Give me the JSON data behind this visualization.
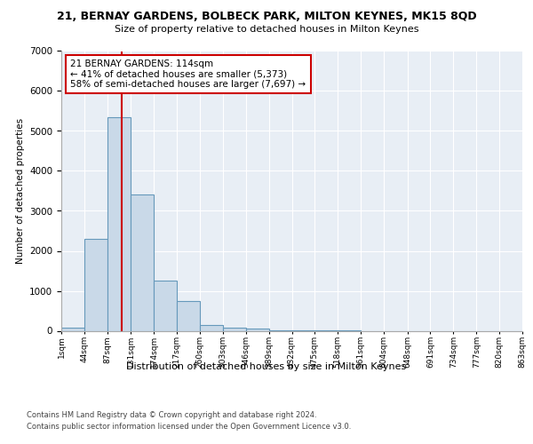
{
  "title": "21, BERNAY GARDENS, BOLBECK PARK, MILTON KEYNES, MK15 8QD",
  "subtitle": "Size of property relative to detached houses in Milton Keynes",
  "xlabel": "Distribution of detached houses by size in Milton Keynes",
  "ylabel": "Number of detached properties",
  "footer_line1": "Contains HM Land Registry data © Crown copyright and database right 2024.",
  "footer_line2": "Contains public sector information licensed under the Open Government Licence v3.0.",
  "bar_color": "#c9d9e8",
  "bar_edge_color": "#6699bb",
  "vertical_line_x": 114,
  "annotation_text": "21 BERNAY GARDENS: 114sqm\n← 41% of detached houses are smaller (5,373)\n58% of semi-detached houses are larger (7,697) →",
  "annotation_box_color": "#ffffff",
  "annotation_box_edge": "#cc0000",
  "vline_color": "#cc0000",
  "bin_edges": [
    1,
    44,
    87,
    131,
    174,
    217,
    260,
    303,
    346,
    389,
    432,
    475,
    518,
    561,
    604,
    648,
    691,
    734,
    777,
    820,
    863
  ],
  "bin_heights": [
    70,
    2300,
    5350,
    3400,
    1250,
    750,
    150,
    75,
    50,
    10,
    5,
    2,
    1,
    0,
    0,
    0,
    0,
    0,
    0,
    0
  ],
  "ylim": [
    0,
    7000
  ],
  "yticks": [
    0,
    1000,
    2000,
    3000,
    4000,
    5000,
    6000,
    7000
  ],
  "plot_background": "#e8eef5",
  "title_fontsize": 9,
  "subtitle_fontsize": 8
}
